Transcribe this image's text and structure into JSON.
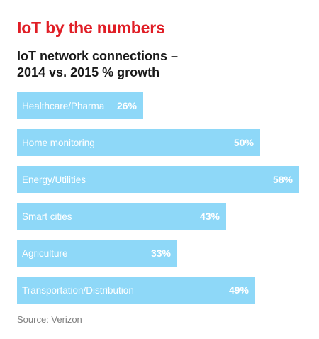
{
  "header": {
    "headline": "IoT by the numbers"
  },
  "colors": {
    "headline": "#e01e26",
    "bar": "#8ed8f8",
    "bar_label": "#ffffff",
    "title": "#1a1a1a",
    "source": "#808080"
  },
  "chart_data": {
    "type": "bar",
    "orientation": "horizontal",
    "title_lines": [
      "IoT network connections –",
      "2014 vs. 2015 % growth"
    ],
    "categories": [
      "Healthcare/Pharma",
      "Home monitoring",
      "Energy/Utilities",
      "Smart cities",
      "Agriculture",
      "Transportation/Distribution"
    ],
    "values": [
      26,
      50,
      58,
      43,
      33,
      49
    ],
    "value_labels": [
      "26%",
      "50%",
      "58%",
      "43%",
      "33%",
      "49%"
    ],
    "unit": "%",
    "xlim": [
      0,
      58
    ],
    "grid": false,
    "legend": "none"
  },
  "footer": {
    "source": "Source: Verizon"
  }
}
